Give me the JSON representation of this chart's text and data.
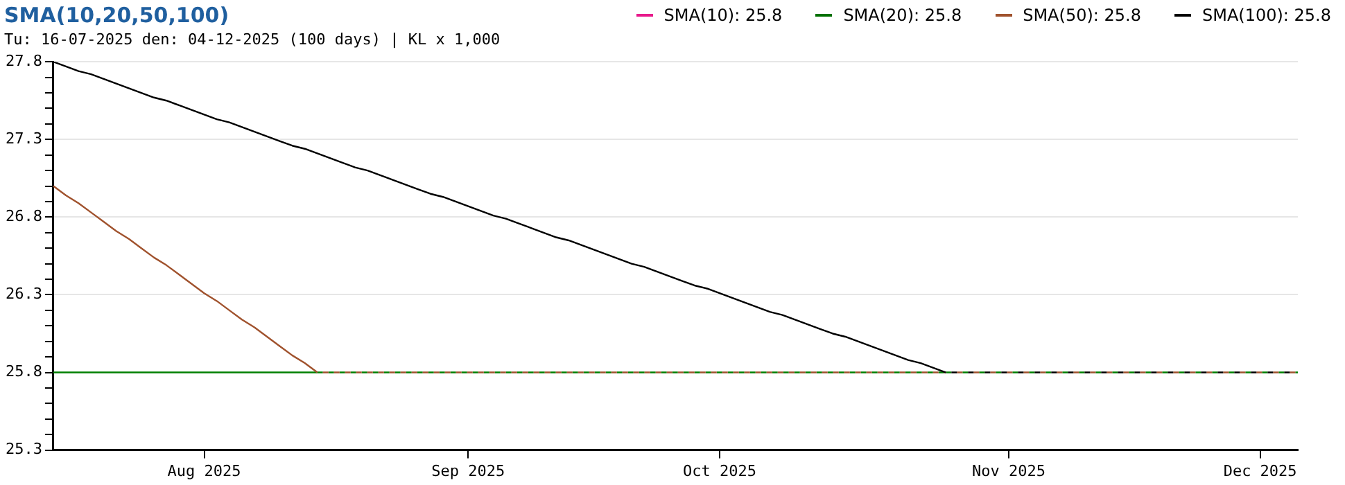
{
  "chart_data": {
    "type": "line",
    "title": "SMA(10,20,50,100)",
    "annotations": [
      "Tu: 16-07-2025 den: 04-12-2025 (100 days) | KL x 1,000"
    ],
    "categories": [
      null,
      null,
      null,
      null,
      null,
      null,
      null,
      null,
      null,
      null,
      null,
      null,
      "Aug 2025",
      null,
      null,
      null,
      null,
      null,
      null,
      null,
      null,
      null,
      null,
      null,
      null,
      null,
      null,
      null,
      null,
      null,
      null,
      null,
      null,
      "Sep 2025",
      null,
      null,
      null,
      null,
      null,
      null,
      null,
      null,
      null,
      null,
      null,
      null,
      null,
      null,
      null,
      null,
      null,
      null,
      null,
      "Oct 2025",
      null,
      null,
      null,
      null,
      null,
      null,
      null,
      null,
      null,
      null,
      null,
      null,
      null,
      null,
      null,
      null,
      null,
      null,
      null,
      null,
      null,
      null,
      "Nov 2025",
      null,
      null,
      null,
      null,
      null,
      null,
      null,
      null,
      null,
      null,
      null,
      null,
      null,
      null,
      null,
      null,
      null,
      null,
      null,
      "Dec 2025",
      null,
      null,
      null
    ],
    "ylim": [
      25.3,
      27.8
    ],
    "yticks": [
      25.3,
      {
        "value": 25.4,
        "label": null
      },
      {
        "value": 25.5,
        "label": null
      },
      {
        "value": 25.6,
        "label": null
      },
      {
        "value": 25.7,
        "label": null
      },
      25.8,
      {
        "value": 25.9,
        "label": null
      },
      {
        "value": 26.0,
        "label": null
      },
      {
        "value": 26.1,
        "label": null
      },
      {
        "value": 26.2,
        "label": null
      },
      26.3,
      {
        "value": 26.4,
        "label": null
      },
      {
        "value": 26.5,
        "label": null
      },
      {
        "value": 26.6,
        "label": null
      },
      {
        "value": 26.7,
        "label": null
      },
      26.8,
      {
        "value": 26.9,
        "label": null
      },
      {
        "value": 27.0,
        "label": null
      },
      {
        "value": 27.1,
        "label": null
      },
      {
        "value": 27.2,
        "label": null
      },
      27.3,
      {
        "value": 27.4,
        "label": null
      },
      {
        "value": 27.5,
        "label": null
      },
      {
        "value": 27.6,
        "label": null
      },
      {
        "value": 27.7,
        "label": null
      },
      27.8
    ],
    "grid": "y",
    "legend": "top right",
    "marker": "none",
    "series": [
      {
        "color": "#008000",
        "values": [
          25.8,
          25.8,
          25.8,
          25.8,
          25.8,
          25.8,
          25.8,
          25.8,
          25.8,
          25.8,
          25.8,
          25.8,
          25.8,
          25.8,
          25.8,
          25.8,
          25.8,
          25.8,
          25.8,
          25.8,
          25.8,
          25.8,
          25.8,
          25.8,
          25.8,
          25.8,
          25.8,
          25.8,
          25.8,
          25.8,
          25.8,
          25.8,
          25.8,
          25.8,
          25.8,
          25.8,
          25.8,
          25.8,
          25.8,
          25.8,
          25.8,
          25.8,
          25.8,
          25.8,
          25.8,
          25.8,
          25.8,
          25.8,
          25.8,
          25.8,
          25.8,
          25.8,
          25.8,
          25.8,
          25.8,
          25.8,
          25.8,
          25.8,
          25.8,
          25.8,
          25.8,
          25.8,
          25.8,
          25.8,
          25.8,
          25.8,
          25.8,
          25.8,
          25.8,
          25.8,
          25.8,
          25.8,
          25.8,
          25.8,
          25.8,
          25.8,
          25.8,
          25.8,
          25.8,
          25.8,
          25.8,
          25.8,
          25.8,
          25.8,
          25.8,
          25.8,
          25.8,
          25.8,
          25.8,
          25.8,
          25.8,
          25.8,
          25.8,
          25.8,
          25.8,
          25.8,
          25.8,
          25.8,
          25.8,
          25.8
        ]
      },
      {
        "name": "SMA(10): 25.8",
        "color": "#e8198b",
        "values": [
          null,
          null,
          null,
          null,
          null,
          null,
          null,
          null,
          null,
          null,
          null,
          null,
          null,
          null,
          null,
          null,
          null,
          null,
          null,
          null,
          null,
          null,
          null,
          null,
          null,
          null,
          null,
          null,
          null,
          null,
          null,
          null,
          null,
          null,
          null,
          null,
          null,
          null,
          null,
          null,
          null,
          null,
          null,
          null,
          null,
          null,
          null,
          null,
          null,
          null,
          null,
          null,
          null,
          null,
          null,
          null,
          null,
          null,
          null,
          null,
          null,
          null,
          null,
          null,
          null,
          null,
          null,
          null,
          null,
          null,
          null,
          null,
          null,
          null,
          null,
          null,
          null,
          null,
          null,
          null,
          null,
          null,
          null,
          null,
          null,
          null,
          null,
          null,
          null,
          null,
          null,
          null,
          null,
          null,
          null,
          null,
          null,
          null,
          null,
          null
        ]
      },
      {
        "name": "SMA(20): 25.8",
        "color": "#007000",
        "values": [
          null,
          null,
          null,
          null,
          null,
          null,
          null,
          null,
          null,
          null,
          null,
          null,
          null,
          null,
          null,
          null,
          null,
          null,
          null,
          null,
          null,
          null,
          null,
          null,
          null,
          null,
          null,
          null,
          null,
          null,
          null,
          null,
          null,
          null,
          null,
          null,
          null,
          null,
          null,
          null,
          null,
          null,
          null,
          null,
          null,
          null,
          null,
          null,
          null,
          null,
          null,
          null,
          null,
          null,
          null,
          null,
          null,
          null,
          null,
          null,
          null,
          null,
          null,
          null,
          null,
          null,
          null,
          null,
          null,
          null,
          null,
          null,
          null,
          null,
          null,
          null,
          null,
          null,
          null,
          null,
          null,
          null,
          null,
          null,
          null,
          null,
          null,
          null,
          null,
          null,
          null,
          null,
          null,
          null,
          null,
          null,
          null,
          null,
          null,
          null
        ]
      },
      {
        "name": "SMA(50): 25.8",
        "color": "#a0522d",
        "values": [
          27.0,
          26.94,
          26.89,
          26.83,
          26.77,
          26.71,
          26.66,
          26.6,
          26.54,
          26.49,
          26.43,
          26.37,
          26.31,
          26.26,
          26.2,
          26.14,
          26.09,
          26.03,
          25.97,
          25.91,
          25.86,
          25.8,
          25.8,
          25.8,
          25.8,
          25.8,
          25.8,
          25.8,
          25.8,
          25.8,
          25.8,
          25.8,
          25.8,
          25.8,
          25.8,
          25.8,
          25.8,
          25.8,
          25.8,
          25.8,
          25.8,
          25.8,
          25.8,
          25.8,
          25.8,
          25.8,
          25.8,
          25.8,
          25.8,
          25.8,
          25.8,
          25.8,
          25.8,
          25.8,
          25.8,
          25.8,
          25.8,
          25.8,
          25.8,
          25.8,
          25.8,
          25.8,
          25.8,
          25.8,
          25.8,
          25.8,
          25.8,
          25.8,
          25.8,
          25.8,
          25.8,
          25.8,
          25.8,
          25.8,
          25.8,
          25.8,
          25.8,
          25.8,
          25.8,
          25.8,
          25.8,
          25.8,
          25.8,
          25.8,
          25.8,
          25.8,
          25.8,
          25.8,
          25.8,
          25.8,
          25.8,
          25.8,
          25.8,
          25.8,
          25.8,
          25.8,
          25.8,
          25.8,
          25.8,
          25.8
        ]
      },
      {
        "name": "SMA(100): 25.8",
        "color": "#000000",
        "values": [
          27.8,
          27.77,
          27.74,
          27.72,
          27.69,
          27.66,
          27.63,
          27.6,
          27.57,
          27.55,
          27.52,
          27.49,
          27.46,
          27.43,
          27.41,
          27.38,
          27.35,
          27.32,
          27.29,
          27.26,
          27.24,
          27.21,
          27.18,
          27.15,
          27.12,
          27.1,
          27.07,
          27.04,
          27.01,
          26.98,
          26.95,
          26.93,
          26.9,
          26.87,
          26.84,
          26.81,
          26.79,
          26.76,
          26.73,
          26.7,
          26.67,
          26.65,
          26.62,
          26.59,
          26.56,
          26.53,
          26.5,
          26.48,
          26.45,
          26.42,
          26.39,
          26.36,
          26.34,
          26.31,
          26.28,
          26.25,
          26.22,
          26.19,
          26.17,
          26.14,
          26.11,
          26.08,
          26.05,
          26.03,
          26.0,
          25.97,
          25.94,
          25.91,
          25.88,
          25.86,
          25.83,
          25.8,
          25.8,
          25.8,
          25.8,
          25.8,
          25.8,
          25.8,
          25.8,
          25.8,
          25.8,
          25.8,
          25.8,
          25.8,
          25.8,
          25.8,
          25.8,
          25.8,
          25.8,
          25.8,
          25.8,
          25.8,
          25.8,
          25.8,
          25.8,
          25.8,
          25.8,
          25.8,
          25.8,
          25.8
        ]
      }
    ]
  }
}
